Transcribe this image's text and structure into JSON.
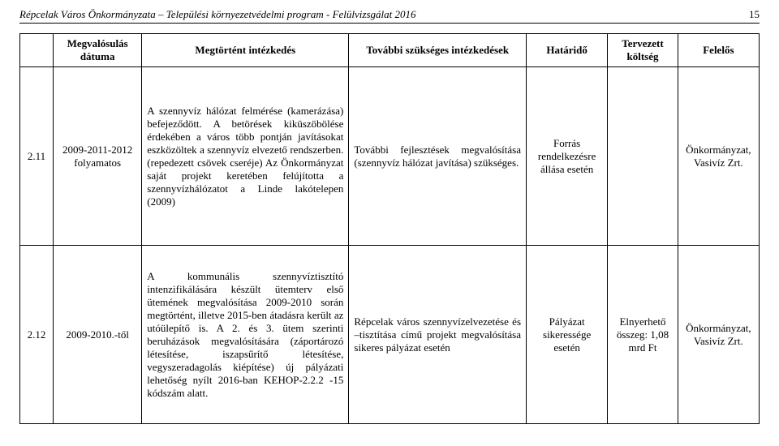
{
  "header": {
    "title": "Répcelak Város Önkormányzata – Települési környezetvédelmi program - Felülvizsgálat 2016",
    "page_number": "15"
  },
  "table": {
    "headers": {
      "col1": "Megvalósulás dátuma",
      "col2": "Megtörtént intézkedés",
      "col3": "További szükséges intézkedések",
      "col4": "Határidő",
      "col5": "Tervezett költség",
      "col6": "Felelős"
    },
    "rows": [
      {
        "num": "2.11",
        "date": "2009-2011-2012 folyamatos",
        "done": "A szennyvíz hálózat felmérése (kamerázása) befejeződött. A betörések kiküszöbölése érdekében a város több pontján javításokat eszközöltek a szennyvíz elvezető rendszerben. (repedezett csövek cseréje) Az Önkormányzat saját projekt keretében felújította a szennyvízhálózatot a Linde lakótelepen (2009)",
        "further": "További fejlesztések megvalósítása (szennyvíz hálózat javítása) szükséges.",
        "deadline": "Forrás rendelkezésre állása esetén",
        "cost": "",
        "resp": "Önkormányzat, Vasivíz Zrt."
      },
      {
        "num": "2.12",
        "date": "2009-2010.-től",
        "done": "A kommunális szennyvíztisztító intenzifikálására készült ütemterv első ütemének megvalósítása 2009-2010 során megtörtént, illetve 2015-ben átadásra került az utóülepítő is. A 2. és 3. ütem szerinti beruházások megvalósítására (záportározó létesítése, iszapsűrítő létesítése, vegyszeradagolás kiépítése) új pályázati lehetőség nyílt 2016-ban KEHOP-2.2.2 -15 kódszám alatt.",
        "further": "Répcelak város szennyvízelvezetése és –tisztítása című projekt megvalósítása sikeres pályázat esetén",
        "deadline": "Pályázat sikeressége esetén",
        "cost": "Elnyerhető összeg: 1,08 mrd Ft",
        "resp": "Önkormányzat, Vasivíz Zrt."
      }
    ]
  }
}
